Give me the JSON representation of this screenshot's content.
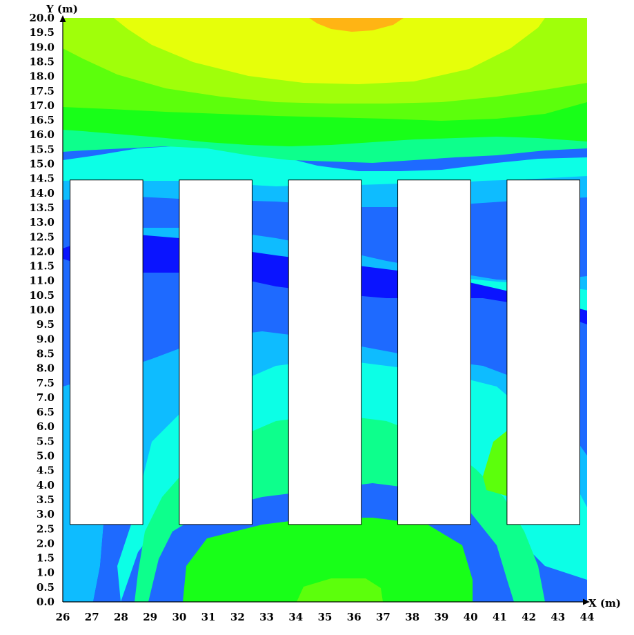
{
  "chart_data": {
    "type": "heatmap",
    "title": "",
    "xlabel": "X (m)",
    "ylabel": "Y (m)",
    "xlim": [
      26,
      44
    ],
    "ylim": [
      0,
      20
    ],
    "x_ticks": [
      "26",
      "27",
      "28",
      "29",
      "30",
      "31",
      "32",
      "33",
      "34",
      "35",
      "36",
      "37",
      "38",
      "39",
      "40",
      "41",
      "42",
      "43",
      "44"
    ],
    "y_ticks": [
      "0.0",
      "0.5",
      "1.0",
      "1.5",
      "2.0",
      "2.5",
      "3.0",
      "3.5",
      "4.0",
      "4.5",
      "5.0",
      "5.5",
      "6.0",
      "6.5",
      "7.0",
      "7.5",
      "8.0",
      "8.5",
      "9.0",
      "9.5",
      "10.0",
      "10.5",
      "11.0",
      "11.5",
      "12.0",
      "12.5",
      "13.0",
      "13.5",
      "14.0",
      "14.5",
      "15.0",
      "15.5",
      "16.0",
      "16.5",
      "17.0",
      "17.5",
      "18.0",
      "18.5",
      "19.0",
      "19.5",
      "20.0"
    ],
    "grid": false,
    "legend": "none",
    "contour_colors": [
      "#0a14ff",
      "#1e6aff",
      "#0ebcff",
      "#0cffe6",
      "#0dff8c",
      "#18ff18",
      "#5cff0c",
      "#a0ff0a",
      "#e6ff0a",
      "#ffb414"
    ],
    "obstacles": [
      {
        "x0": 26.25,
        "x1": 28.75,
        "y0": 2.65,
        "y1": 14.45
      },
      {
        "x0": 30.0,
        "x1": 32.5,
        "y0": 2.65,
        "y1": 14.45
      },
      {
        "x0": 33.75,
        "x1": 36.25,
        "y0": 2.65,
        "y1": 14.45
      },
      {
        "x0": 37.5,
        "x1": 40.0,
        "y0": 2.65,
        "y1": 14.45
      },
      {
        "x0": 41.25,
        "x1": 43.75,
        "y0": 2.65,
        "y1": 14.45
      }
    ]
  }
}
